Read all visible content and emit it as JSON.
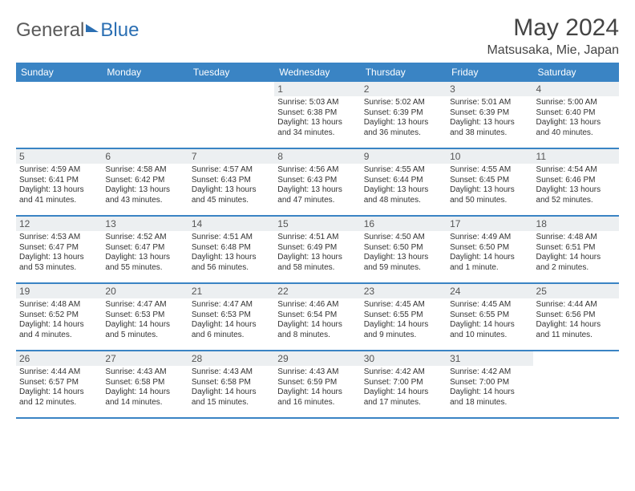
{
  "logo": {
    "part1": "General",
    "part2": "Blue"
  },
  "title": "May 2024",
  "location": "Matsusaka, Mie, Japan",
  "colors": {
    "header_bg": "#3a84c4",
    "header_text": "#ffffff",
    "daynum_bg": "#eceff1",
    "row_border": "#3a84c4",
    "text": "#333333"
  },
  "dow": [
    "Sunday",
    "Monday",
    "Tuesday",
    "Wednesday",
    "Thursday",
    "Friday",
    "Saturday"
  ],
  "weeks": [
    [
      {
        "n": "",
        "info": ""
      },
      {
        "n": "",
        "info": ""
      },
      {
        "n": "",
        "info": ""
      },
      {
        "n": "1",
        "info": "Sunrise: 5:03 AM\nSunset: 6:38 PM\nDaylight: 13 hours and 34 minutes."
      },
      {
        "n": "2",
        "info": "Sunrise: 5:02 AM\nSunset: 6:39 PM\nDaylight: 13 hours and 36 minutes."
      },
      {
        "n": "3",
        "info": "Sunrise: 5:01 AM\nSunset: 6:39 PM\nDaylight: 13 hours and 38 minutes."
      },
      {
        "n": "4",
        "info": "Sunrise: 5:00 AM\nSunset: 6:40 PM\nDaylight: 13 hours and 40 minutes."
      }
    ],
    [
      {
        "n": "5",
        "info": "Sunrise: 4:59 AM\nSunset: 6:41 PM\nDaylight: 13 hours and 41 minutes."
      },
      {
        "n": "6",
        "info": "Sunrise: 4:58 AM\nSunset: 6:42 PM\nDaylight: 13 hours and 43 minutes."
      },
      {
        "n": "7",
        "info": "Sunrise: 4:57 AM\nSunset: 6:43 PM\nDaylight: 13 hours and 45 minutes."
      },
      {
        "n": "8",
        "info": "Sunrise: 4:56 AM\nSunset: 6:43 PM\nDaylight: 13 hours and 47 minutes."
      },
      {
        "n": "9",
        "info": "Sunrise: 4:55 AM\nSunset: 6:44 PM\nDaylight: 13 hours and 48 minutes."
      },
      {
        "n": "10",
        "info": "Sunrise: 4:55 AM\nSunset: 6:45 PM\nDaylight: 13 hours and 50 minutes."
      },
      {
        "n": "11",
        "info": "Sunrise: 4:54 AM\nSunset: 6:46 PM\nDaylight: 13 hours and 52 minutes."
      }
    ],
    [
      {
        "n": "12",
        "info": "Sunrise: 4:53 AM\nSunset: 6:47 PM\nDaylight: 13 hours and 53 minutes."
      },
      {
        "n": "13",
        "info": "Sunrise: 4:52 AM\nSunset: 6:47 PM\nDaylight: 13 hours and 55 minutes."
      },
      {
        "n": "14",
        "info": "Sunrise: 4:51 AM\nSunset: 6:48 PM\nDaylight: 13 hours and 56 minutes."
      },
      {
        "n": "15",
        "info": "Sunrise: 4:51 AM\nSunset: 6:49 PM\nDaylight: 13 hours and 58 minutes."
      },
      {
        "n": "16",
        "info": "Sunrise: 4:50 AM\nSunset: 6:50 PM\nDaylight: 13 hours and 59 minutes."
      },
      {
        "n": "17",
        "info": "Sunrise: 4:49 AM\nSunset: 6:50 PM\nDaylight: 14 hours and 1 minute."
      },
      {
        "n": "18",
        "info": "Sunrise: 4:48 AM\nSunset: 6:51 PM\nDaylight: 14 hours and 2 minutes."
      }
    ],
    [
      {
        "n": "19",
        "info": "Sunrise: 4:48 AM\nSunset: 6:52 PM\nDaylight: 14 hours and 4 minutes."
      },
      {
        "n": "20",
        "info": "Sunrise: 4:47 AM\nSunset: 6:53 PM\nDaylight: 14 hours and 5 minutes."
      },
      {
        "n": "21",
        "info": "Sunrise: 4:47 AM\nSunset: 6:53 PM\nDaylight: 14 hours and 6 minutes."
      },
      {
        "n": "22",
        "info": "Sunrise: 4:46 AM\nSunset: 6:54 PM\nDaylight: 14 hours and 8 minutes."
      },
      {
        "n": "23",
        "info": "Sunrise: 4:45 AM\nSunset: 6:55 PM\nDaylight: 14 hours and 9 minutes."
      },
      {
        "n": "24",
        "info": "Sunrise: 4:45 AM\nSunset: 6:55 PM\nDaylight: 14 hours and 10 minutes."
      },
      {
        "n": "25",
        "info": "Sunrise: 4:44 AM\nSunset: 6:56 PM\nDaylight: 14 hours and 11 minutes."
      }
    ],
    [
      {
        "n": "26",
        "info": "Sunrise: 4:44 AM\nSunset: 6:57 PM\nDaylight: 14 hours and 12 minutes."
      },
      {
        "n": "27",
        "info": "Sunrise: 4:43 AM\nSunset: 6:58 PM\nDaylight: 14 hours and 14 minutes."
      },
      {
        "n": "28",
        "info": "Sunrise: 4:43 AM\nSunset: 6:58 PM\nDaylight: 14 hours and 15 minutes."
      },
      {
        "n": "29",
        "info": "Sunrise: 4:43 AM\nSunset: 6:59 PM\nDaylight: 14 hours and 16 minutes."
      },
      {
        "n": "30",
        "info": "Sunrise: 4:42 AM\nSunset: 7:00 PM\nDaylight: 14 hours and 17 minutes."
      },
      {
        "n": "31",
        "info": "Sunrise: 4:42 AM\nSunset: 7:00 PM\nDaylight: 14 hours and 18 minutes."
      },
      {
        "n": "",
        "info": ""
      }
    ]
  ]
}
